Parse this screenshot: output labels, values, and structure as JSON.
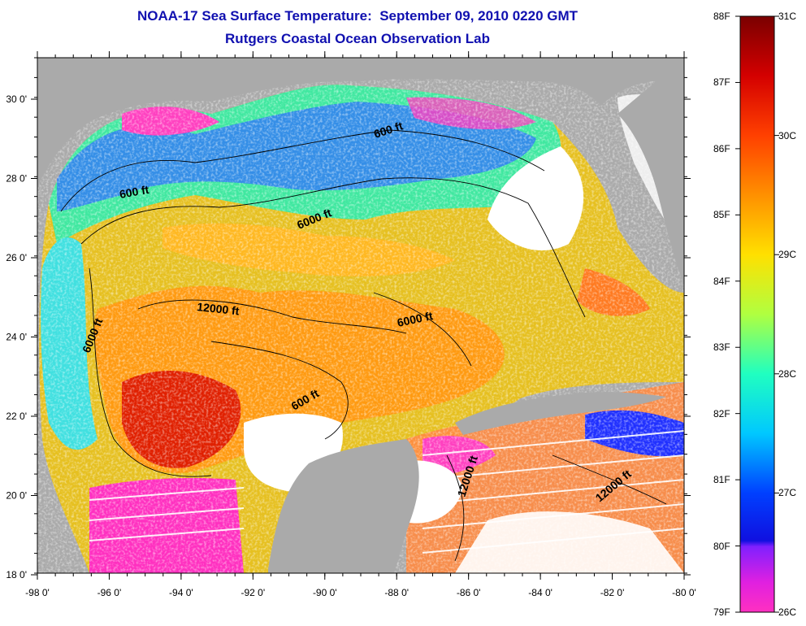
{
  "title": {
    "line1": "NOAA-17 Sea Surface Temperature:  September 09, 2010 0220 GMT",
    "line2": "Rutgers Coastal Ocean Observation Lab"
  },
  "map": {
    "lon_ticks": [
      "-98 0'",
      "-96 0'",
      "-94 0'",
      "-92 0'",
      "-90 0'",
      "-88 0'",
      "-86 0'",
      "-84 0'",
      "-82 0'",
      "-80 0'"
    ],
    "lat_ticks": [
      "30 0'",
      "28 0'",
      "26 0'",
      "24 0'",
      "22 0'",
      "20 0'",
      "18 0'"
    ],
    "contour_labels": [
      "600 ft",
      "600 ft",
      "6000 ft",
      "12000 ft",
      "6000 ft",
      "6000 ft",
      "600 ft",
      "12000 ft",
      "12000 ft"
    ]
  },
  "colorbar": {
    "fahrenheit": [
      "88F",
      "87F",
      "86F",
      "85F",
      "84F",
      "83F",
      "82F",
      "81F",
      "80F",
      "79F"
    ],
    "celsius": [
      "31C",
      "30C",
      "29C",
      "28C",
      "27C",
      "26C"
    ]
  },
  "colors": {
    "title": "#1010b0",
    "land": "#aaaaaa",
    "cloud": "#ffffff"
  }
}
